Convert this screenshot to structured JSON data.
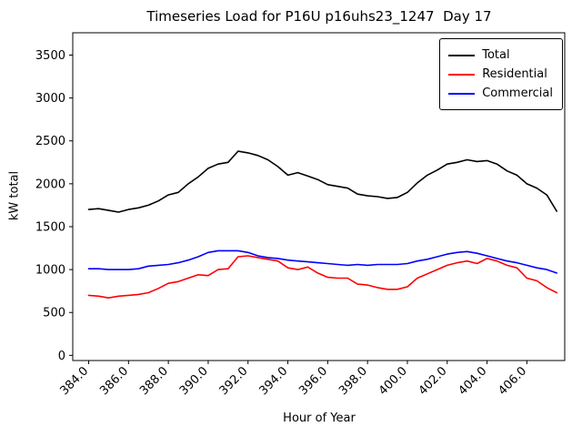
{
  "chart_data": {
    "type": "line",
    "title": "Timeseries Load for P16U p16uhs23_1247  Day 17",
    "xlabel": "Hour of Year",
    "ylabel": "kW total",
    "xlim": [
      383.2,
      407.9
    ],
    "ylim": [
      -60,
      3760
    ],
    "grid": false,
    "legend_position": "upper right",
    "x_ticks": [
      384,
      386,
      388,
      390,
      392,
      394,
      396,
      398,
      400,
      402,
      404,
      406
    ],
    "x_tick_labels": [
      "384.0",
      "386.0",
      "388.0",
      "390.0",
      "392.0",
      "394.0",
      "396.0",
      "398.0",
      "400.0",
      "402.0",
      "404.0",
      "406.0"
    ],
    "y_ticks": [
      0,
      500,
      1000,
      1500,
      2000,
      2500,
      3000,
      3500
    ],
    "y_tick_labels": [
      "0",
      "500",
      "1000",
      "1500",
      "2000",
      "2500",
      "3000",
      "3500"
    ],
    "x": [
      384.0,
      384.5,
      385.0,
      385.5,
      386.0,
      386.5,
      387.0,
      387.5,
      388.0,
      388.5,
      389.0,
      389.5,
      390.0,
      390.5,
      391.0,
      391.5,
      392.0,
      392.5,
      393.0,
      393.5,
      394.0,
      394.5,
      395.0,
      395.5,
      396.0,
      396.5,
      397.0,
      397.5,
      398.0,
      398.5,
      399.0,
      399.5,
      400.0,
      400.5,
      401.0,
      401.5,
      402.0,
      402.5,
      403.0,
      403.5,
      404.0,
      404.5,
      405.0,
      405.5,
      406.0,
      406.5,
      407.0,
      407.5
    ],
    "series": [
      {
        "name": "Total",
        "color": "#000000",
        "values": [
          1700,
          1710,
          1690,
          1670,
          1700,
          1720,
          1750,
          1800,
          1870,
          1900,
          2000,
          2080,
          2180,
          2230,
          2250,
          2380,
          2360,
          2330,
          2280,
          2200,
          2100,
          2130,
          2090,
          2050,
          1990,
          1970,
          1950,
          1880,
          1860,
          1850,
          1830,
          1840,
          1900,
          2010,
          2100,
          2160,
          2230,
          2250,
          2280,
          2260,
          2270,
          2230,
          2150,
          2100,
          2000,
          1950,
          1870,
          1680
        ]
      },
      {
        "name": "Residential",
        "color": "#ff0000",
        "values": [
          700,
          690,
          670,
          690,
          700,
          710,
          730,
          780,
          840,
          860,
          900,
          940,
          930,
          1000,
          1010,
          1150,
          1160,
          1140,
          1120,
          1100,
          1020,
          1000,
          1030,
          960,
          910,
          900,
          900,
          830,
          820,
          790,
          770,
          770,
          800,
          900,
          950,
          1000,
          1050,
          1080,
          1100,
          1070,
          1130,
          1100,
          1050,
          1020,
          900,
          870,
          790,
          730
        ]
      },
      {
        "name": "Commercial",
        "color": "#0000ff",
        "values": [
          1010,
          1010,
          1000,
          1000,
          1000,
          1010,
          1040,
          1050,
          1060,
          1080,
          1110,
          1150,
          1200,
          1220,
          1220,
          1220,
          1200,
          1160,
          1140,
          1130,
          1110,
          1100,
          1090,
          1080,
          1070,
          1060,
          1050,
          1060,
          1050,
          1060,
          1060,
          1060,
          1070,
          1100,
          1120,
          1150,
          1180,
          1200,
          1210,
          1190,
          1160,
          1130,
          1100,
          1080,
          1050,
          1020,
          1000,
          960
        ]
      }
    ]
  }
}
